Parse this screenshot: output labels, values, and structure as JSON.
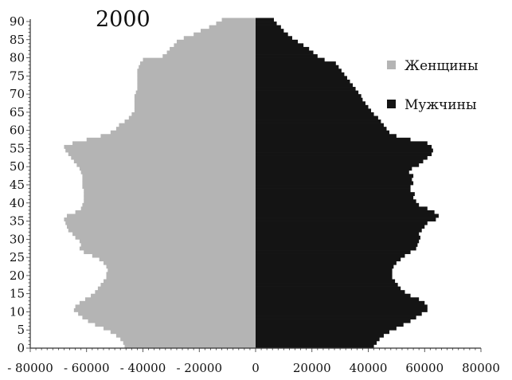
{
  "chart_data": {
    "type": "bar",
    "title": "2000",
    "orientation": "horizontal",
    "layout": "population-pyramid",
    "colors": {
      "female": "#b4b4b4",
      "male": "#141414",
      "axis": "#333333"
    },
    "xlim": [
      -80000,
      80000
    ],
    "ylim": [
      0,
      90
    ],
    "x_ticks": [
      -80000,
      -60000,
      -40000,
      -20000,
      0,
      20000,
      40000,
      60000,
      80000
    ],
    "x_tick_labels": [
      "- 80000",
      "- 60000",
      "- 40000",
      "- 20000",
      "0",
      "20000",
      "40000",
      "60000",
      "80000"
    ],
    "y_ticks": [
      0,
      5,
      10,
      15,
      20,
      25,
      30,
      35,
      40,
      45,
      50,
      55,
      60,
      65,
      70,
      75,
      80,
      85,
      90
    ],
    "legend_position": "right",
    "ages": [
      0,
      1,
      2,
      3,
      4,
      5,
      6,
      7,
      8,
      9,
      10,
      11,
      12,
      13,
      14,
      15,
      16,
      17,
      18,
      19,
      20,
      21,
      22,
      23,
      24,
      25,
      26,
      27,
      28,
      29,
      30,
      31,
      32,
      33,
      34,
      35,
      36,
      37,
      38,
      39,
      40,
      41,
      42,
      43,
      44,
      45,
      46,
      47,
      48,
      49,
      50,
      51,
      52,
      53,
      54,
      55,
      56,
      57,
      58,
      59,
      60,
      61,
      62,
      63,
      64,
      65,
      66,
      67,
      68,
      69,
      70,
      71,
      72,
      73,
      74,
      75,
      76,
      77,
      78,
      79,
      80,
      81,
      82,
      83,
      84,
      85,
      86,
      87,
      88,
      89,
      90
    ],
    "series": [
      {
        "name": "Женщины",
        "side": "left",
        "values": [
          46500,
          47000,
          48000,
          49500,
          51500,
          54000,
          57000,
          59500,
          61500,
          63000,
          64500,
          64000,
          62500,
          60500,
          58500,
          57000,
          56000,
          55000,
          54000,
          53000,
          53000,
          52500,
          53000,
          54000,
          55500,
          58000,
          61000,
          62500,
          62000,
          62500,
          64000,
          65000,
          66500,
          67000,
          67500,
          68000,
          67000,
          64000,
          62000,
          61500,
          61000,
          61000,
          61000,
          61000,
          61500,
          61500,
          61500,
          61500,
          62000,
          62500,
          63500,
          64500,
          65500,
          66500,
          67500,
          68000,
          65000,
          60000,
          55000,
          51500,
          49500,
          48500,
          46500,
          45000,
          44000,
          43000,
          43000,
          43000,
          43000,
          43000,
          42500,
          42000,
          42000,
          42000,
          42000,
          42000,
          42000,
          41500,
          41000,
          40000,
          33000,
          31500,
          30500,
          29000,
          28000,
          25500,
          22000,
          19500,
          16500,
          14000,
          12000
        ]
      },
      {
        "name": "Мужчины",
        "side": "right",
        "values": [
          42000,
          43000,
          44000,
          45500,
          47500,
          50000,
          52500,
          55000,
          57000,
          59000,
          61000,
          61000,
          60000,
          58000,
          55000,
          53000,
          51500,
          50500,
          49500,
          48500,
          48500,
          48500,
          49000,
          50000,
          51500,
          53000,
          55000,
          57000,
          57500,
          58000,
          58500,
          58000,
          59000,
          60000,
          61000,
          64000,
          65000,
          63500,
          61000,
          58000,
          57000,
          56000,
          56500,
          55000,
          55000,
          56000,
          55500,
          56000,
          54500,
          55500,
          58000,
          59500,
          61000,
          62500,
          63000,
          62500,
          61000,
          55000,
          50000,
          47500,
          46500,
          45500,
          44500,
          43500,
          42000,
          41000,
          40000,
          39000,
          38000,
          37500,
          36500,
          35500,
          34500,
          33500,
          32500,
          31500,
          30500,
          29500,
          28500,
          24500,
          22000,
          20500,
          19000,
          17000,
          15000,
          13000,
          11500,
          10000,
          9000,
          7500,
          6500
        ]
      }
    ]
  }
}
